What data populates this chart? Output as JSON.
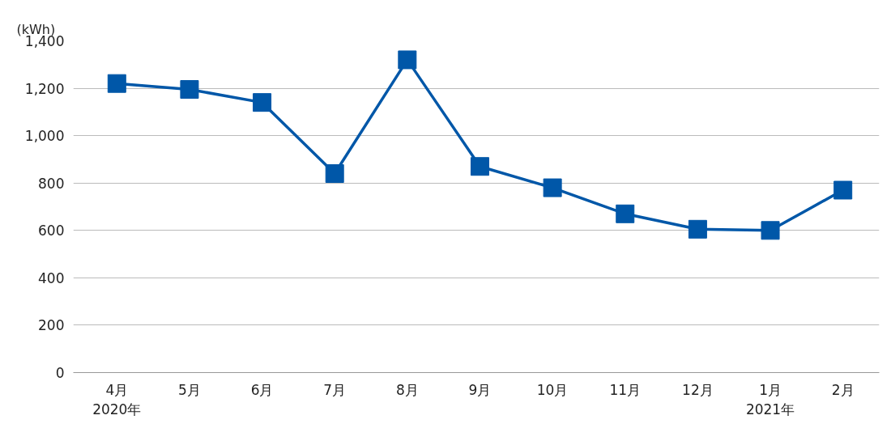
{
  "chart_data": {
    "type": "line",
    "ylabel": "(kWh)",
    "categories": [
      "4月\n2020年",
      "5月",
      "6月",
      "7月",
      "8月",
      "9月",
      "10月",
      "11月",
      "12月",
      "1月\n2021年",
      "2月"
    ],
    "series": [
      {
        "color": "#0057a8",
        "values": [
          1220,
          1195,
          1140,
          840,
          1320,
          870,
          780,
          670,
          605,
          600,
          770
        ]
      }
    ],
    "ylim": [
      0,
      1400
    ],
    "yticks": [
      0,
      {
        "value": 200,
        "label": "200"
      },
      {
        "value": 400,
        "label": "400"
      },
      {
        "value": 600,
        "label": "600"
      },
      {
        "value": 800,
        "label": "800"
      },
      {
        "value": 1000,
        "label": "1,000"
      },
      {
        "value": 1200,
        "label": "1,200"
      },
      {
        "value": 1400,
        "label": "1,400"
      }
    ],
    "grid": "y",
    "marker": "square",
    "line_style": "solid"
  }
}
